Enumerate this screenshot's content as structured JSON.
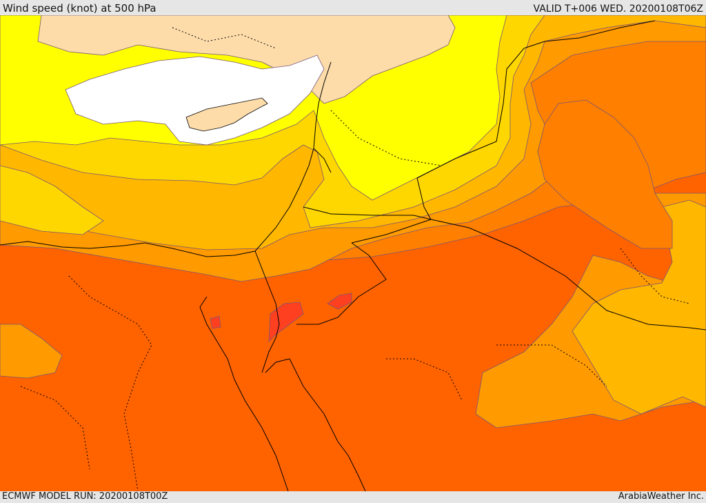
{
  "header": {
    "title": "Wind speed (knot) at 500 hPa",
    "valid": "VALID T+006 WED. 20200108T06Z"
  },
  "footer": {
    "model_run": "ECMWF MODEL RUN: 20200108T00Z",
    "credit": "ArabiaWeather Inc."
  },
  "map": {
    "variable": "wind speed",
    "units": "knot",
    "pressure_level_hpa": 500,
    "shading_colors": {
      "white": "#ffffff",
      "cream": "#fddcaa",
      "yellow": "#ffff00",
      "gold": "#ffd700",
      "light_orange": "#ffb700",
      "orange": "#ff9a00",
      "dark_orange": "#ff7f00",
      "red_orange": "#ff6300",
      "red": "#ff4020"
    },
    "land_color": "#fddcaa",
    "border_color": "#000000",
    "contour_color": "#555555"
  }
}
